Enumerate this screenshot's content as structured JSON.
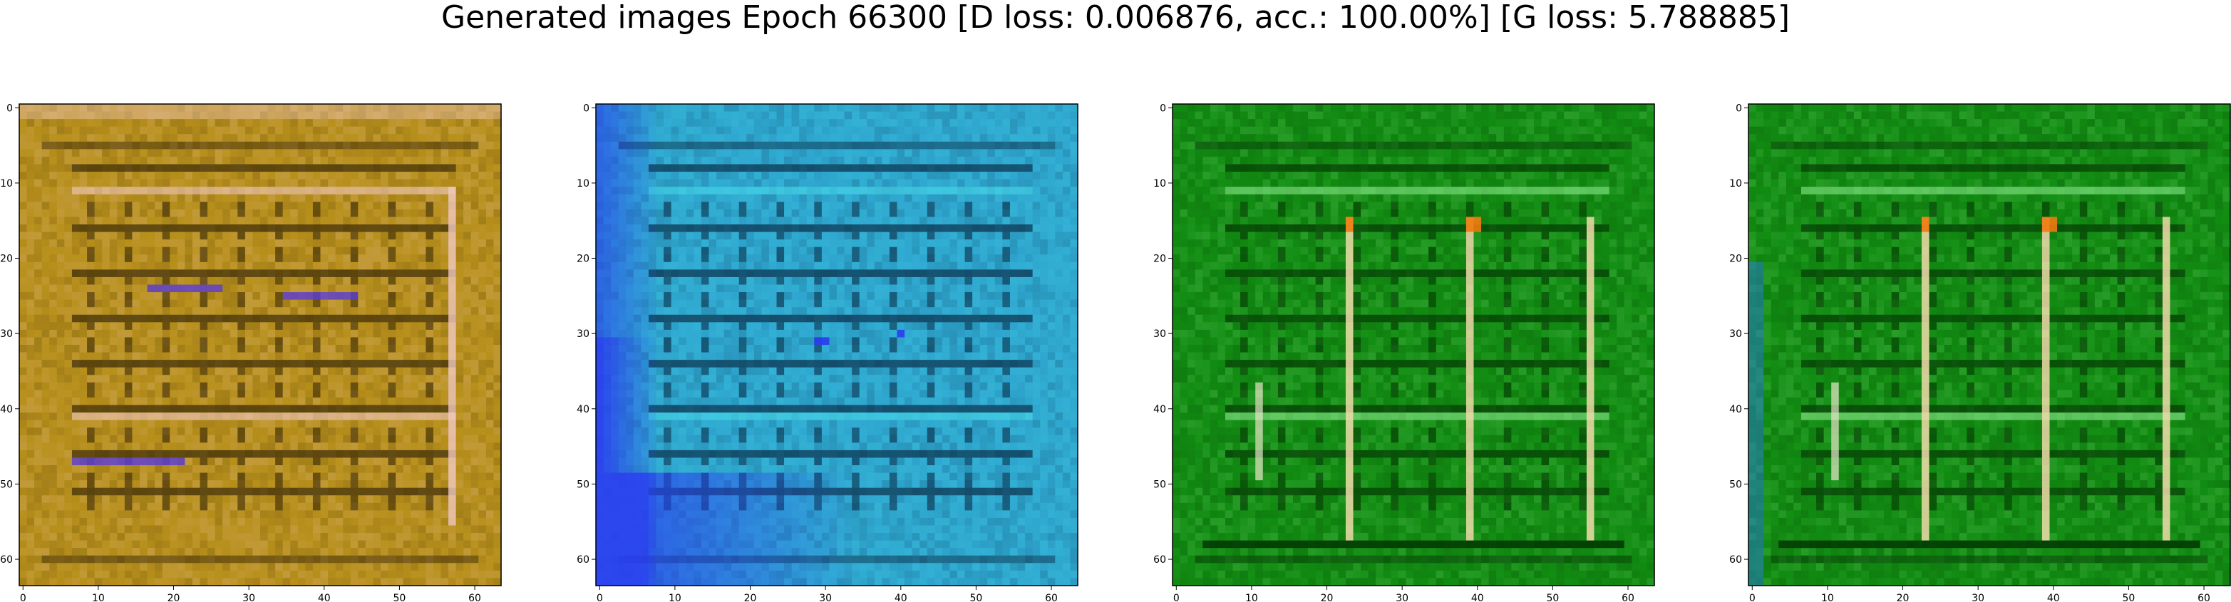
{
  "figure": {
    "title": "Generated images Epoch 66300 [D loss: 0.006876, acc.: 100.00%] [G loss: 5.788885]"
  },
  "chart_data": [
    {
      "type": "heatmap",
      "name": "panel-1",
      "colors": {
        "base": "#b8901c",
        "dark": "#3b2a08",
        "light": "#f0c8c0",
        "accent": "#5a3cd8"
      },
      "grid": false,
      "xlim": [
        -0.5,
        63.5
      ],
      "ylim": [
        63.5,
        -0.5
      ],
      "xticks": [
        "0",
        "10",
        "20",
        "30",
        "40",
        "50",
        "60"
      ],
      "yticks": [
        "0",
        "10",
        "20",
        "30",
        "40",
        "50",
        "60"
      ]
    },
    {
      "type": "heatmap",
      "name": "panel-2",
      "colors": {
        "base": "#2fa8d0",
        "dark": "#0a2f4a",
        "light": "#46d8e8",
        "accent": "#2a3cf0"
      },
      "grid": false,
      "xlim": [
        -0.5,
        63.5
      ],
      "ylim": [
        63.5,
        -0.5
      ],
      "xticks": [
        "0",
        "10",
        "20",
        "30",
        "40",
        "50",
        "60"
      ],
      "yticks": [
        "0",
        "10",
        "20",
        "30",
        "40",
        "50",
        "60"
      ]
    },
    {
      "type": "heatmap",
      "name": "panel-3",
      "colors": {
        "base": "#128c12",
        "dark": "#043a04",
        "light": "#8ae88a",
        "accent": "#f07a10"
      },
      "grid": false,
      "xlim": [
        -0.5,
        63.5
      ],
      "ylim": [
        63.5,
        -0.5
      ],
      "xticks": [
        "0",
        "10",
        "20",
        "30",
        "40",
        "50",
        "60"
      ],
      "yticks": [
        "0",
        "10",
        "20",
        "30",
        "40",
        "50",
        "60"
      ]
    },
    {
      "type": "heatmap",
      "name": "panel-4",
      "colors": {
        "base": "#128c12",
        "dark": "#043a04",
        "light": "#8ae88a",
        "accent": "#f07a10"
      },
      "grid": false,
      "xlim": [
        -0.5,
        63.5
      ],
      "ylim": [
        63.5,
        -0.5
      ],
      "xticks": [
        "0",
        "10",
        "20",
        "30",
        "40",
        "50",
        "60"
      ],
      "yticks": [
        "0",
        "10",
        "20",
        "30",
        "40",
        "50",
        "60"
      ]
    }
  ]
}
